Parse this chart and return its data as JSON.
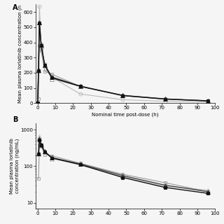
{
  "panel_A": {
    "xlabel": "Nominal time post-dose (h)",
    "xlim": [
      -1,
      100
    ],
    "ylim": [
      0,
      650
    ],
    "yticks": [
      0,
      100,
      200,
      300,
      400,
      500,
      600
    ],
    "xticks": [
      0,
      10,
      20,
      30,
      40,
      50,
      60,
      70,
      80,
      90,
      100
    ],
    "series": [
      {
        "name": "open_circle",
        "x": [
          0,
          0.5,
          1,
          2,
          4,
          8,
          24,
          48,
          72,
          96
        ],
        "y": [
          0,
          215,
          640,
          390,
          260,
          170,
          60,
          22,
          12,
          8
        ],
        "marker": "o",
        "markersize": 3.5,
        "color": "#bbbbbb",
        "fillstyle": "none",
        "linewidth": 0.8
      },
      {
        "name": "open_triangle",
        "x": [
          0,
          0.5,
          1,
          2,
          4,
          8,
          24,
          48,
          72,
          96
        ],
        "y": [
          0,
          215,
          530,
          375,
          250,
          160,
          110,
          50,
          27,
          15
        ],
        "marker": "^",
        "markersize": 4,
        "color": "#999999",
        "fillstyle": "none",
        "linewidth": 0.8
      },
      {
        "name": "open_square",
        "x": [
          0,
          0.5,
          1,
          2,
          4,
          8,
          24,
          48,
          72,
          96
        ],
        "y": [
          0,
          30,
          380,
          345,
          210,
          190,
          110,
          52,
          28,
          15
        ],
        "marker": "s",
        "markersize": 3.5,
        "color": "#999999",
        "fillstyle": "none",
        "linewidth": 0.8
      },
      {
        "name": "filled_triangle",
        "x": [
          0,
          0.5,
          1,
          2,
          4,
          8,
          24,
          48,
          72,
          96
        ],
        "y": [
          0,
          220,
          530,
          385,
          252,
          172,
          112,
          50,
          27,
          15
        ],
        "marker": "^",
        "markersize": 4,
        "color": "#444444",
        "fillstyle": "full",
        "linewidth": 1.0
      },
      {
        "name": "filled_square",
        "x": [
          0,
          0.5,
          1,
          2,
          4,
          8,
          24,
          48,
          72,
          96
        ],
        "y": [
          0,
          215,
          525,
          378,
          248,
          167,
          110,
          49,
          26,
          14
        ],
        "marker": "s",
        "markersize": 3.5,
        "color": "#111111",
        "fillstyle": "full",
        "linewidth": 1.0
      }
    ]
  },
  "panel_B": {
    "xlim": [
      -1,
      100
    ],
    "ylim": [
      7,
      1500
    ],
    "yticks": [
      10,
      100,
      1000
    ],
    "yticklabels": [
      "10",
      "100",
      "1000"
    ],
    "xticks": [
      0,
      10,
      20,
      30,
      40,
      50,
      60,
      70,
      80,
      90,
      100
    ],
    "series": [
      {
        "name": "open_triangle",
        "x": [
          0.5,
          1,
          2,
          4,
          8,
          24,
          48,
          72,
          96
        ],
        "y": [
          215,
          650,
          375,
          250,
          160,
          115,
          52,
          28,
          22
        ],
        "marker": "^",
        "markersize": 4,
        "color": "#bbbbbb",
        "fillstyle": "none",
        "linewidth": 0.8
      },
      {
        "name": "open_square",
        "x": [
          0.5,
          1,
          2,
          4,
          8,
          24,
          48,
          72,
          96
        ],
        "y": [
          45,
          385,
          345,
          210,
          192,
          120,
          60,
          35,
          20
        ],
        "marker": "s",
        "markersize": 3.5,
        "color": "#999999",
        "fillstyle": "none",
        "linewidth": 0.8
      },
      {
        "name": "filled_triangle",
        "x": [
          0.5,
          1,
          2,
          4,
          8,
          24,
          48,
          72,
          96
        ],
        "y": [
          220,
          560,
          385,
          252,
          172,
          115,
          55,
          30,
          20
        ],
        "marker": "^",
        "markersize": 4,
        "color": "#444444",
        "fillstyle": "full",
        "linewidth": 1.0
      },
      {
        "name": "filled_square",
        "x": [
          0.5,
          1,
          2,
          4,
          8,
          24,
          48,
          72,
          96
        ],
        "y": [
          215,
          525,
          378,
          248,
          167,
          110,
          49,
          26,
          18
        ],
        "marker": "s",
        "markersize": 3.5,
        "color": "#111111",
        "fillstyle": "full",
        "linewidth": 1.0
      }
    ]
  },
  "panel_label_A": "A",
  "panel_label_B": "B",
  "background_color": "#f5f5f5",
  "font_size": 5,
  "label_fontsize": 5,
  "tick_fontsize": 5
}
